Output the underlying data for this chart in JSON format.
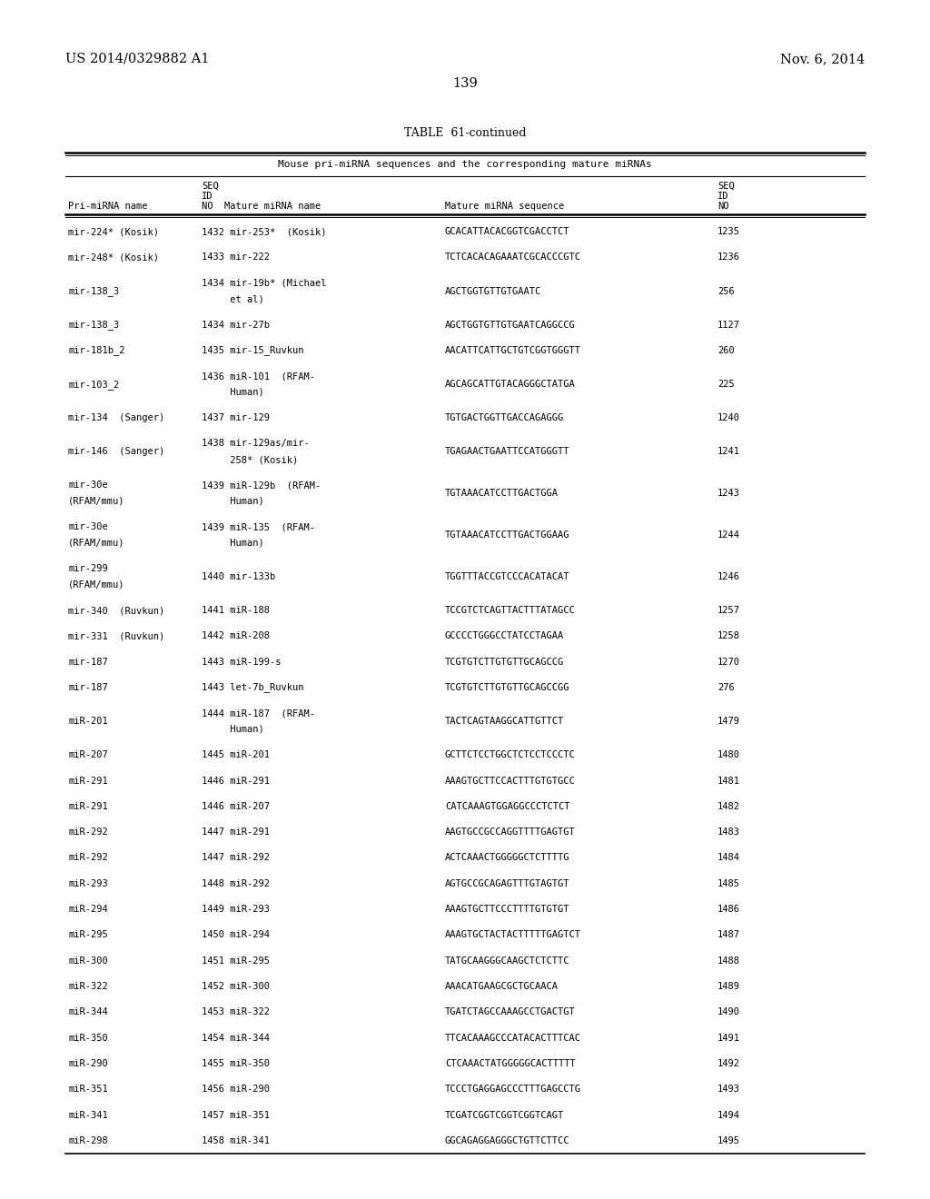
{
  "patent_number": "US 2014/0329882 A1",
  "date": "Nov. 6, 2014",
  "page_number": "139",
  "table_title": "TABLE  61-continued",
  "table_subtitle": "Mouse pri-miRNA sequences and the corresponding mature miRNAs",
  "bg_color": "#ffffff",
  "text_color": "#000000",
  "rows": [
    [
      "mir-224* (Kosik)",
      "1432 mir-253*  (Kosik)",
      "GCACATTACACGGTCGACCTCT",
      "1235"
    ],
    [
      "mir-248* (Kosik)",
      "1433 mir-222",
      "TCTCACACAGAAATCGCACCCGTC",
      "1236"
    ],
    [
      "mir-138_3",
      "1434 mir-19b* (Michael\n     et al)",
      "AGCTGGTGTTGTGAATC",
      "256"
    ],
    [
      "mir-138_3",
      "1434 mir-27b",
      "AGCTGGTGTTGTGAATCAGGCCG",
      "1127"
    ],
    [
      "mir-181b_2",
      "1435 mir-15_Ruvkun",
      "AACATTCATTGCTGTCGGTGGGTT",
      "260"
    ],
    [
      "mir-103_2",
      "1436 miR-101  (RFAM-\n     Human)",
      "AGCAGCATTGTACAGGGCTATGA",
      "225"
    ],
    [
      "mir-134  (Sanger)",
      "1437 mir-129",
      "TGTGACTGGTTGACCAGAGGG",
      "1240"
    ],
    [
      "mir-146  (Sanger)",
      "1438 mir-129as/mir-\n     258* (Kosik)",
      "TGAGAACTGAATTCCATGGGTT",
      "1241"
    ],
    [
      "mir-30e\n(RFAM/mmu)",
      "1439 miR-129b  (RFAM-\n     Human)",
      "TGTAAACATCCTTGACTGGA",
      "1243"
    ],
    [
      "mir-30e\n(RFAM/mmu)",
      "1439 miR-135  (RFAM-\n     Human)",
      "TGTAAACATCCTTGACTGGAAG",
      "1244"
    ],
    [
      "mir-299\n(RFAM/mmu)",
      "1440 mir-133b",
      "TGGTTTACCGTCCCACATACAT",
      "1246"
    ],
    [
      "mir-340  (Ruvkun)",
      "1441 miR-188",
      "TCCGTCTCAGTTACTTTATAGCC",
      "1257"
    ],
    [
      "mir-331  (Ruvkun)",
      "1442 miR-208",
      "GCCCCTGGGCCTATCCTAGAA",
      "1258"
    ],
    [
      "mir-187",
      "1443 miR-199-s",
      "TCGTGTCTTGTGTTGCAGCCG",
      "1270"
    ],
    [
      "mir-187",
      "1443 let-7b_Ruvkun",
      "TCGTGTCTTGTGTTGCAGCCGG",
      "276"
    ],
    [
      "miR-201",
      "1444 miR-187  (RFAM-\n     Human)",
      "TACTCAGTAAGGCATTGTTCT",
      "1479"
    ],
    [
      "miR-207",
      "1445 miR-201",
      "GCTTCTCCTGGCTCTCCTCCCTC",
      "1480"
    ],
    [
      "miR-291",
      "1446 miR-291",
      "AAAGTGCTTCCACTTTGTGTGCC",
      "1481"
    ],
    [
      "miR-291",
      "1446 miR-207",
      "CATCAAAGTGGAGGCCCTCTCT",
      "1482"
    ],
    [
      "miR-292",
      "1447 miR-291",
      "AAGTGCCGCCAGGTTTTGAGTGT",
      "1483"
    ],
    [
      "miR-292",
      "1447 miR-292",
      "ACTCAAACTGGGGGCTCTTTTG",
      "1484"
    ],
    [
      "miR-293",
      "1448 miR-292",
      "AGTGCCGCAGAGTTTGTAGTGT",
      "1485"
    ],
    [
      "miR-294",
      "1449 miR-293",
      "AAAGTGCTTCCCTTTTGTGTGT",
      "1486"
    ],
    [
      "miR-295",
      "1450 miR-294",
      "AAAGTGCTACTACTTTTTGAGTCT",
      "1487"
    ],
    [
      "miR-300",
      "1451 miR-295",
      "TATGCAAGGGCAAGCTCTCTTC",
      "1488"
    ],
    [
      "miR-322",
      "1452 miR-300",
      "AAACATGAAGCGCTGCAACA",
      "1489"
    ],
    [
      "miR-344",
      "1453 miR-322",
      "TGATCTAGCCAAAGCCTGACTGT",
      "1490"
    ],
    [
      "miR-350",
      "1454 miR-344",
      "TTCACAAAGCCCATACACTTTCAC",
      "1491"
    ],
    [
      "miR-290",
      "1455 miR-350",
      "CTCAAACTATGGGGGCACTTTTT",
      "1492"
    ],
    [
      "miR-351",
      "1456 miR-290",
      "TCCCTGAGGAGCCCTTTGAGCCTG",
      "1493"
    ],
    [
      "miR-341",
      "1457 miR-351",
      "TCGATCGGTCGGTCGGTCAGT",
      "1494"
    ],
    [
      "miR-298",
      "1458 miR-341",
      "GGCAGAGGAGGGCTGTTCTTCC",
      "1495"
    ]
  ]
}
